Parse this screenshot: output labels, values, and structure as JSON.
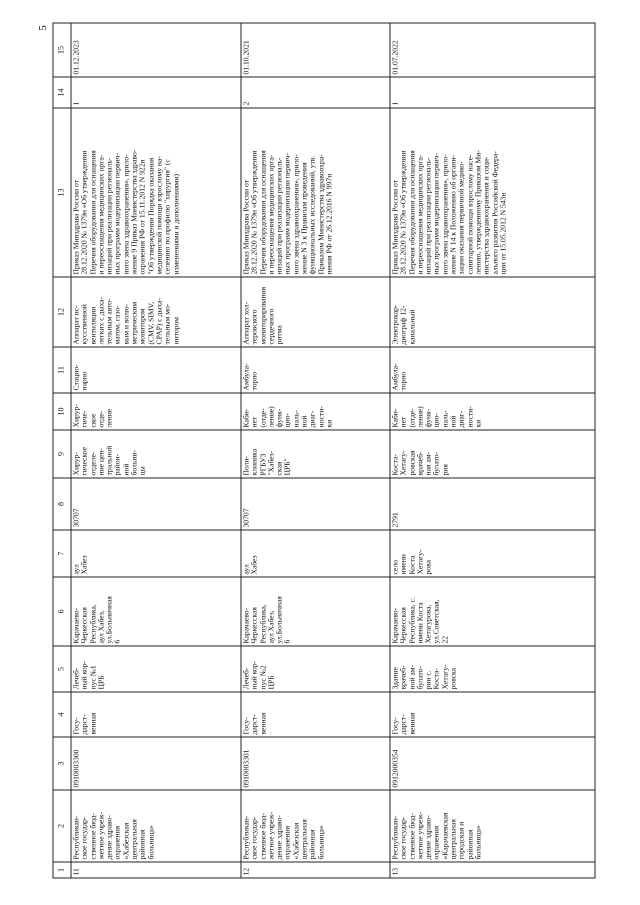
{
  "page_number": "5",
  "headers": [
    "1",
    "2",
    "3",
    "4",
    "5",
    "6",
    "7",
    "8",
    "9",
    "10",
    "11",
    "12",
    "13",
    "14",
    "15"
  ],
  "rows": [
    [
      "11",
      "Республикан-\nское государ-\nственное бюд-\nжетное учреж-\nдение здраво-\nохранения\n«Хабезская\nцентральная\nрайонная\nбольница»",
      "0910003300",
      "Госу-\nдарст-\nвенная",
      "Лечеб-\nный кор-\nпус №1\nЦРБ",
      "Карачаево-\nЧеркесская\nРеспублика,\nаул Хабез,\nул.Больничная\n6",
      "аул\nХабез",
      "30707",
      "Хирур-\nгическое\nотделе-\nние цен-\nтральной\nрайон-\nной\nбольни-\nцы",
      "Хирур-\nгиче-\nское\nотде-\nление",
      "Стацио-\nнарно",
      "Аппарат ис-\nкусственной\nвентиляции\nлегких с дыха-\nтельным авто-\nматом, газо-\nвым и волю-\nметрическим\nмонитором\n(CMV, SIMV,\nCPAP) с дыха-\nтельным мо-\nнитором",
      "Приказ Минздрава России от\n28.12.2020 № 1379н «Об утверждении\nПеречня оборудования для оснащения\nи переоснащения медицинских орга-\nнизаций при реализации региональ-\nных программ модернизации первич-\nного звена здравоохранения», прило-\nжение 9 Приказ Министерства здраво-\nохранения РФ от 15.11.2012 N 922н\n\"Об утверждении Порядка оказания\nмедицинской помощи взрослому на-\nселению по профилю \"хирургия\" (с\nизменениями и дополнениями)",
      "1",
      "01.12.2023"
    ],
    [
      "12",
      "Республикан-\nское государ-\nственное бюд-\nжетное учреж-\nдение здраво-\nохранения\n«Хабезская\nцентральная\nрайонная\nбольница»",
      "0910003301",
      "Госу-\nдарст-\nвенная",
      "Лечеб-\nный кор-\nпус №2\nЦРБ",
      "Карачаево-\nЧеркесская\nРеспублика,\nаул Хабез,\nул.Больничная\n6",
      "аул\nХабез",
      "30707",
      "Поли-\nклиника\nРГБУЗ\n\"Хабез-\nская\nЦРБ\"",
      "Каби-\nнет\n(отде-\nление)\nфунк-\nцио-\nналь-\nной\nдиаг-\nности-\nки",
      "Амбула-\nторно",
      "Аппарат хол-\nтеровского\nмониторирования\nсердечного\nритма",
      "Приказ Минздрава России от\n28.12.2020 № 1379н «Об утверждении\nПеречня оборудования для оснащения\nи переоснащения медицинских орга-\nнизаций при реализации региональ-\nных программ модернизации первич-\nного звена здравоохранения», прило-\nжение N 3 к Правилам проведения\nфункциональных исследований, утв.\nПриказом Министерства здравоохра-\nнения РФ от 26.12.2016  N 997н",
      "2",
      "01.10.2021"
    ],
    [
      "13",
      "Республикан-\nское государ-\nственное бюд-\nжетное учреж-\nдение здраво-\nохранения\n«Карачаевская\nцентральная\nгородская и\nрайонная\nбольница»",
      "0912000354",
      "Госу-\nдарст-\nвенная",
      "Здание\nврачеб-\nной ам-\nбулато-\nрии с.\nКоста-\nХетагу-\nровска",
      "Карачаево-\nЧеркесская\nРеспублика, с.\nимени Коста\nХетагурова,\nул.Советская,\n22",
      "село\nимени\nКоста\nХетагу-\nрова",
      "2791",
      "Коста-\nХетагу-\nровская\nврачеб-\nная ам-\nбулато-\nрия",
      "Каби-\nнет\n(отде-\nление)\nфунк-\nцио-\nналь-\nной\nдиаг-\nности-\nки",
      "Амбула-\nторно",
      "Электрокар-\nдиограф 12-\nканальный",
      "Приказ Минздрава России от\n28.12.2020 № 1379н «Об утверждении\nПеречня оборудования для оснащения\nи переоснащения медицинских орга-\nнизаций при реализации региональ-\nных программ модернизации первич-\nного звена здравоохранения», прило-\nжение N 14 к Положению об органи-\nзации оказания первичной медико-\nсанитарной помощи взрослому насе-\nлению, утвержденному Приказом Ми-\nнистерства здравоохранения и соци-\nального развития Российской Федера-\nции от 15.05.2012 N 543н",
      "1",
      "01.07.2022"
    ]
  ]
}
